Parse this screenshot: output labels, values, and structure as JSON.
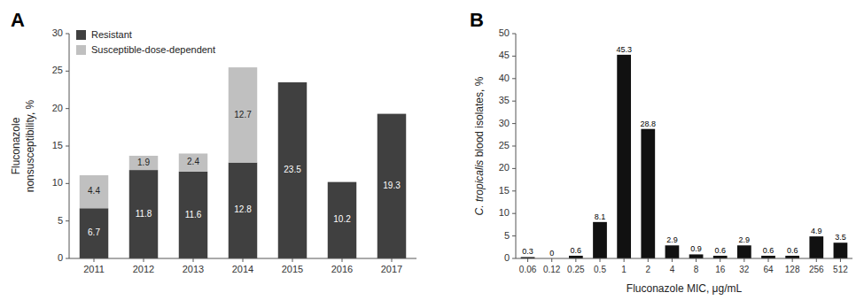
{
  "chart_data": [
    {
      "type": "bar",
      "title": "A",
      "stacked": true,
      "categories": [
        "2011",
        "2012",
        "2013",
        "2014",
        "2015",
        "2016",
        "2017"
      ],
      "series": [
        {
          "name": "Resistant",
          "color": "#404040",
          "values": [
            6.7,
            11.8,
            11.6,
            12.8,
            23.5,
            10.2,
            19.3
          ]
        },
        {
          "name": "Susceptible-dose-dependent",
          "color": "#c0c0c0",
          "values": [
            4.4,
            1.9,
            2.4,
            12.7,
            0.0,
            0.0,
            0.0
          ],
          "value_labels": [
            "4.4",
            "1.9",
            "2.4",
            "12.7",
            null,
            null,
            null
          ]
        }
      ],
      "ylabel": "Fluconazole\nnonsusceptibility, %",
      "ylim": [
        0,
        30
      ],
      "yticks": [
        0,
        5,
        10,
        15,
        20,
        25,
        30
      ],
      "legend": "upper left",
      "data_labels": true
    },
    {
      "type": "bar",
      "title": "B",
      "categories": [
        "0.06",
        "0.12",
        "0.25",
        "0.5",
        "1",
        "2",
        "4",
        "8",
        "16",
        "32",
        "64",
        "128",
        "256",
        "512"
      ],
      "values": [
        0.3,
        0.0,
        0.6,
        8.1,
        45.3,
        28.8,
        2.9,
        0.9,
        0.6,
        2.9,
        0.6,
        0.6,
        4.9,
        3.5
      ],
      "color": "#111111",
      "xlabel": "Fluconazole MIC, μg/mL",
      "ylabel": [
        "C. tropicalis",
        " blood isolates, %"
      ],
      "ylim": [
        0,
        50
      ],
      "yticks": [
        0,
        5,
        10,
        15,
        20,
        25,
        30,
        35,
        40,
        45,
        50
      ],
      "data_labels": true
    }
  ]
}
